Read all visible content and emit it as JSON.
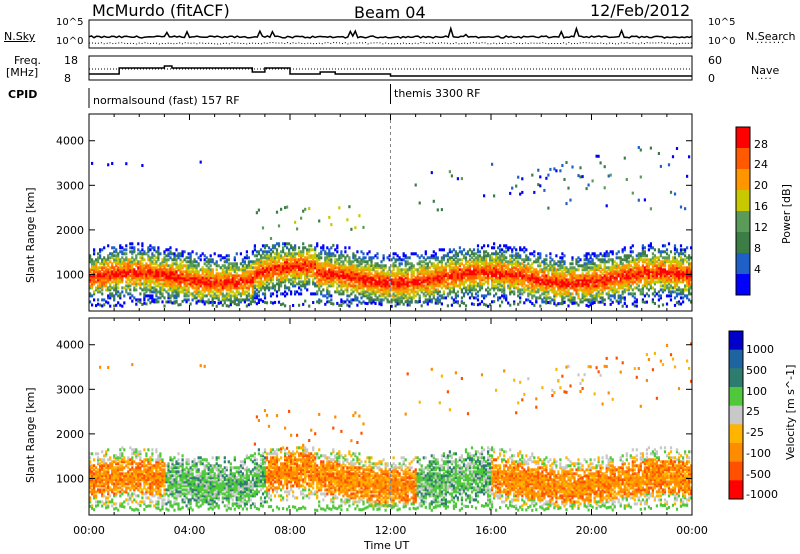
{
  "header": {
    "station": "McMurdo (fitACF)",
    "beam": "Beam 04",
    "date": "12/Feb/2012"
  },
  "nsky_panel": {
    "left_label": "N.Sky",
    "right_label": "N.Search",
    "ticks": [
      "10^5",
      "10^0"
    ]
  },
  "freq_panel": {
    "left_label_line1": "Freq.",
    "left_label_line2": "[MHz]",
    "right_label": "Nave",
    "left_ticks": [
      "18",
      "8"
    ],
    "right_ticks": [
      "60",
      "0"
    ]
  },
  "cpid": {
    "label": "CPID",
    "segments": [
      {
        "text": "normalsound (fast) 157 RF",
        "start_hour": 0
      },
      {
        "text": "themis 3300 RF",
        "start_hour": 12
      }
    ]
  },
  "x_axis": {
    "label": "Time UT",
    "ticks": [
      "00:00",
      "04:00",
      "08:00",
      "12:00",
      "16:00",
      "20:00",
      "00:00"
    ]
  },
  "chart_data": [
    {
      "type": "heatmap",
      "title": "",
      "ylabel": "Slant Range [km]",
      "xlabel": "",
      "xlim": [
        0,
        24
      ],
      "ylim": [
        180,
        4600
      ],
      "y_ticks": [
        1000,
        2000,
        3000,
        4000
      ],
      "colorbar": {
        "label": "Power [dB]",
        "tick_labels": [
          "4",
          "8",
          "12",
          "16",
          "20",
          "24",
          "28"
        ],
        "colors": [
          "#0000ff",
          "#1e5fc8",
          "#3c7d46",
          "#5a9b5a",
          "#c8c800",
          "#ff9600",
          "#ff5a00",
          "#ff0000"
        ]
      },
      "bands": [
        {
          "range_km": [
            700,
            1400
          ],
          "hours": [
            0,
            24
          ],
          "peak_db": 30
        },
        {
          "range_km": [
            1500,
            2600
          ],
          "hours": [
            6.5,
            11
          ],
          "peak_db": 16
        },
        {
          "range_km": [
            2500,
            3500
          ],
          "hours": [
            12,
            22
          ],
          "peak_db": 12
        },
        {
          "range_km": [
            3000,
            4400
          ],
          "hours": [
            16,
            24
          ],
          "peak_db": 10
        }
      ]
    },
    {
      "type": "heatmap",
      "title": "",
      "ylabel": "Slant Range [km]",
      "xlabel": "Time UT",
      "xlim": [
        0,
        24
      ],
      "ylim": [
        180,
        4600
      ],
      "y_ticks": [
        1000,
        2000,
        3000,
        4000
      ],
      "colorbar": {
        "label": "Velocity [m s^-1]",
        "tick_labels": [
          "1000",
          "500",
          "100",
          "25",
          "-25",
          "-100",
          "-500",
          "-1000"
        ],
        "colors": [
          "#0000c8",
          "#1e64a0",
          "#2d7d6e",
          "#50c83c",
          "#c8c8c8",
          "#ffb400",
          "#ff8c00",
          "#ff5000",
          "#ff0000"
        ]
      }
    }
  ]
}
